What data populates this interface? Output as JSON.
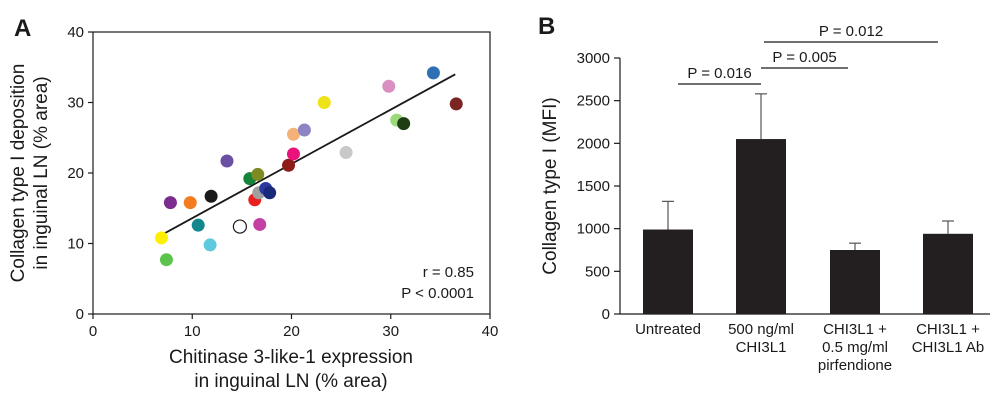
{
  "chart_data": [
    {
      "panel": "A",
      "type": "scatter",
      "xlabel": [
        "Chitinase 3-like-1 expression",
        "in inguinal LN (% area)"
      ],
      "ylabel": [
        "Collagen type I deposition",
        "in inguinal LN (% area)"
      ],
      "xlim": [
        0,
        40
      ],
      "ylim": [
        0,
        40
      ],
      "xticks": [
        "0",
        "10",
        "20",
        "30",
        "40"
      ],
      "yticks": [
        "0",
        "10",
        "20",
        "30",
        "40"
      ],
      "grid": false,
      "annotation": {
        "r": "r = 0.85",
        "p": "P < 0.0001"
      },
      "fit_line": {
        "x": [
          6.5,
          36.5
        ],
        "y": [
          10.9,
          34.0
        ]
      },
      "points": [
        {
          "x": 6.9,
          "y": 10.8,
          "color": "#ffef00"
        },
        {
          "x": 7.4,
          "y": 7.7,
          "color": "#5bc44a"
        },
        {
          "x": 7.8,
          "y": 15.8,
          "color": "#7b2d8e"
        },
        {
          "x": 9.8,
          "y": 15.8,
          "color": "#f47b20"
        },
        {
          "x": 10.6,
          "y": 12.6,
          "color": "#13878b"
        },
        {
          "x": 11.8,
          "y": 9.8,
          "color": "#5fc9e0"
        },
        {
          "x": 11.9,
          "y": 16.7,
          "color": "#1a1a1a"
        },
        {
          "x": 13.5,
          "y": 21.7,
          "color": "#6a4fa3"
        },
        {
          "x": 14.8,
          "y": 12.4,
          "color": "#ffffff",
          "stroke": "#1a1a1a"
        },
        {
          "x": 15.8,
          "y": 19.2,
          "color": "#15843a"
        },
        {
          "x": 16.3,
          "y": 16.2,
          "color": "#e8201f"
        },
        {
          "x": 16.6,
          "y": 19.8,
          "color": "#7d8b22"
        },
        {
          "x": 16.7,
          "y": 17.2,
          "color": "#a0a0a0"
        },
        {
          "x": 16.8,
          "y": 12.7,
          "color": "#c43fa3"
        },
        {
          "x": 17.4,
          "y": 17.8,
          "color": "#2a3aa1"
        },
        {
          "x": 17.8,
          "y": 17.2,
          "color": "#1a2a7a"
        },
        {
          "x": 19.7,
          "y": 21.1,
          "color": "#8e1a1a"
        },
        {
          "x": 20.2,
          "y": 25.5,
          "color": "#f4b27a"
        },
        {
          "x": 20.2,
          "y": 22.7,
          "color": "#e8127a"
        },
        {
          "x": 21.3,
          "y": 26.1,
          "color": "#8f83c4"
        },
        {
          "x": 23.3,
          "y": 30.0,
          "color": "#ede316"
        },
        {
          "x": 25.5,
          "y": 22.9,
          "color": "#c8c8c8"
        },
        {
          "x": 29.8,
          "y": 32.3,
          "color": "#d98fbf"
        },
        {
          "x": 30.6,
          "y": 27.5,
          "color": "#9bd97a"
        },
        {
          "x": 31.3,
          "y": 27.0,
          "color": "#1e3d12"
        },
        {
          "x": 34.3,
          "y": 34.2,
          "color": "#2f6fb3"
        },
        {
          "x": 36.6,
          "y": 29.8,
          "color": "#7a2424"
        }
      ]
    },
    {
      "panel": "B",
      "type": "bar",
      "ylabel": "Collagen type I (MFI)",
      "ylim": [
        0,
        3000
      ],
      "yticks": [
        "0",
        "500",
        "1000",
        "1500",
        "2000",
        "2500",
        "3000"
      ],
      "categories": [
        [
          "Untreated"
        ],
        [
          "500 ng/ml",
          "CHI3L1"
        ],
        [
          "CHI3L1 +",
          "0.5 mg/ml",
          "pirfendione"
        ],
        [
          "CHI3L1 +",
          "CHI3L1 Ab"
        ]
      ],
      "values": [
        990,
        2050,
        750,
        940
      ],
      "errors": [
        330,
        530,
        80,
        150
      ],
      "bar_color": "#231f20",
      "significance": [
        {
          "between": [
            0,
            1
          ],
          "label": "P = 0.016"
        },
        {
          "between": [
            1,
            2
          ],
          "label": "P = 0.005"
        },
        {
          "between": [
            1,
            3
          ],
          "label": "P = 0.012"
        }
      ]
    }
  ]
}
